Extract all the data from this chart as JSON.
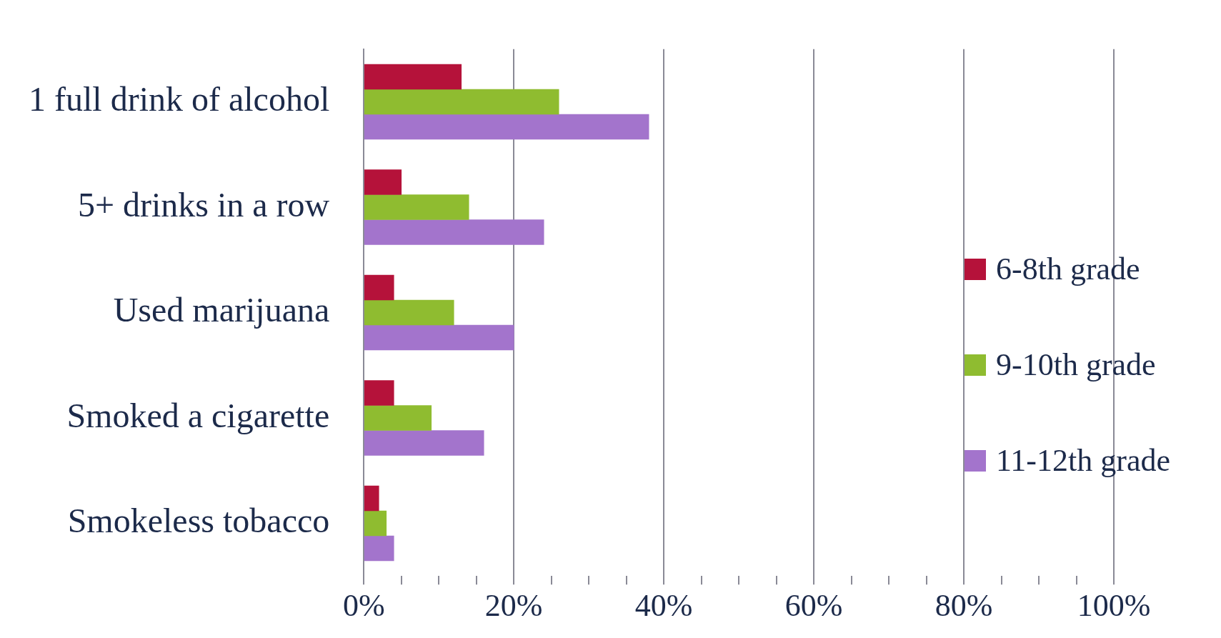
{
  "chart_data": {
    "type": "bar",
    "orientation": "horizontal",
    "categories": [
      "1 full drink of alcohol",
      "5+ drinks in a row",
      "Used marijuana",
      "Smoked a cigarette",
      "Smokeless tobacco"
    ],
    "series": [
      {
        "name": "6-8th grade",
        "color": "#b5123a",
        "values": [
          13,
          5,
          4,
          4,
          2
        ]
      },
      {
        "name": "9-10th grade",
        "color": "#8fbc30",
        "values": [
          26,
          14,
          12,
          9,
          3
        ]
      },
      {
        "name": "11-12th grade",
        "color": "#a374cc",
        "values": [
          38,
          24,
          20,
          16,
          4
        ]
      }
    ],
    "xlim": [
      0,
      100
    ],
    "xticks": [
      {
        "value": 0,
        "label": "0%"
      },
      {
        "value": 5,
        "label": null
      },
      {
        "value": 10,
        "label": null
      },
      {
        "value": 15,
        "label": null
      },
      {
        "value": 20,
        "label": "20%"
      },
      {
        "value": 25,
        "label": null
      },
      {
        "value": 30,
        "label": null
      },
      {
        "value": 35,
        "label": null
      },
      {
        "value": 40,
        "label": "40%"
      },
      {
        "value": 45,
        "label": null
      },
      {
        "value": 50,
        "label": null
      },
      {
        "value": 55,
        "label": null
      },
      {
        "value": 60,
        "label": "60%"
      },
      {
        "value": 65,
        "label": null
      },
      {
        "value": 70,
        "label": null
      },
      {
        "value": 75,
        "label": null
      },
      {
        "value": 80,
        "label": "80%"
      },
      {
        "value": 85,
        "label": null
      },
      {
        "value": 90,
        "label": null
      },
      {
        "value": 95,
        "label": null
      },
      {
        "value": 100,
        "label": "100%"
      }
    ],
    "grid": "x",
    "legend": "right"
  }
}
